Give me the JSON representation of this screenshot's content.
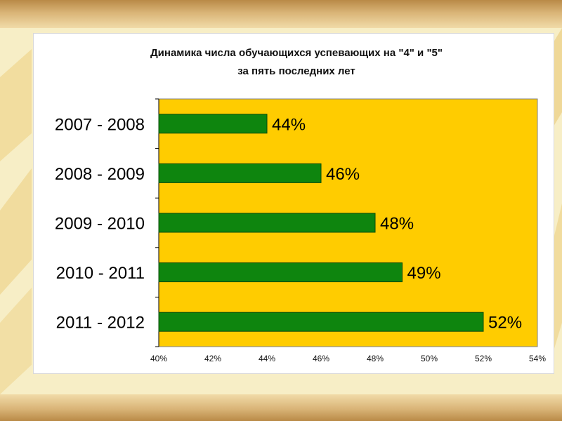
{
  "colors": {
    "plot_background": "#ffcc00",
    "bar_fill": "#0e850e",
    "bar_border": "#0a4a0a",
    "slide_background": "#f7eec6"
  },
  "chart_data": {
    "type": "bar",
    "orientation": "horizontal",
    "title": "Динамика числа обучающихся успевающих на \"4\" и \"5\"",
    "subtitle": "за пять последних лет",
    "categories": [
      "2007 - 2008",
      "2008 - 2009",
      "2009 - 2010",
      "2010 - 2011",
      "2011 - 2012"
    ],
    "values": [
      44,
      46,
      48,
      49,
      52
    ],
    "value_labels": [
      "44%",
      "46%",
      "48%",
      "49%",
      "52%"
    ],
    "xlim": [
      40,
      54
    ],
    "x_ticks": [
      40,
      42,
      44,
      46,
      48,
      50,
      52,
      54
    ],
    "x_tick_labels": [
      "40%",
      "42%",
      "44%",
      "46%",
      "48%",
      "50%",
      "52%",
      "54%"
    ],
    "grid": false,
    "legend": "none"
  }
}
